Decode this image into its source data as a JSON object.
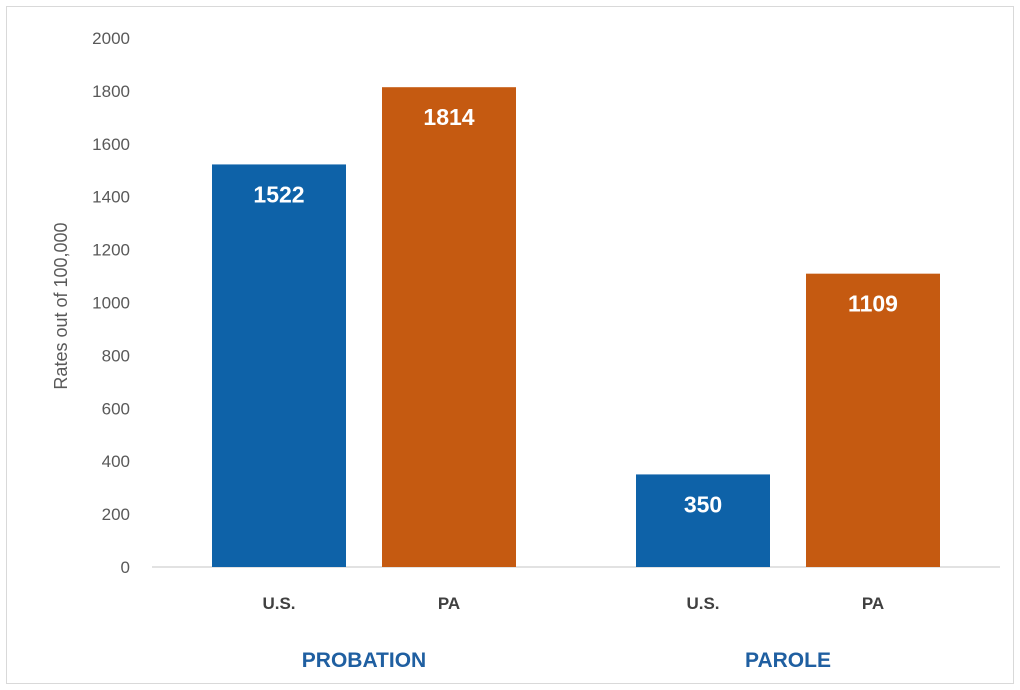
{
  "chart_data": {
    "type": "bar",
    "ylabel": "Rates out of 100,000",
    "ylim": [
      0,
      2000
    ],
    "yticks": [
      0,
      200,
      400,
      600,
      800,
      1000,
      1200,
      1400,
      1600,
      1800,
      2000
    ],
    "grid": false,
    "groups": [
      {
        "name": "PROBATION",
        "bars": [
          {
            "category": "U.S.",
            "value": 1522,
            "color": "#0e62a8"
          },
          {
            "category": "PA",
            "value": 1814,
            "color": "#c55a11"
          }
        ]
      },
      {
        "name": "PAROLE",
        "bars": [
          {
            "category": "U.S.",
            "value": 350,
            "color": "#0e62a8"
          },
          {
            "category": "PA",
            "value": 1109,
            "color": "#c55a11"
          }
        ]
      }
    ]
  }
}
